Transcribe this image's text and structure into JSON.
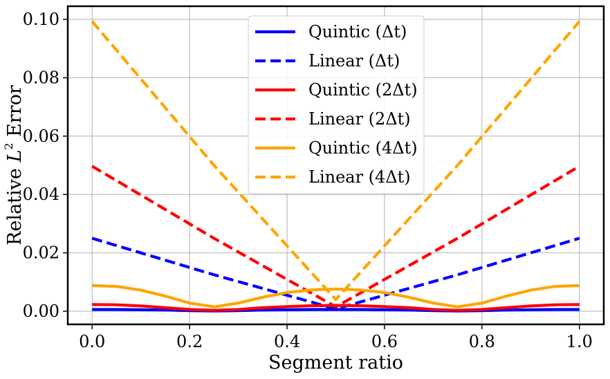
{
  "chart_data": {
    "type": "line",
    "title": "",
    "xlabel": "Segment ratio",
    "ylabel_prefix": "Relative ",
    "ylabel_var": "L",
    "ylabel_sup": "2",
    "ylabel_suffix": " Error",
    "xlim": [
      -0.05,
      1.05
    ],
    "ylim": [
      -0.0045,
      0.1045
    ],
    "xticks": [
      0.0,
      0.2,
      0.4,
      0.6,
      0.8,
      1.0
    ],
    "xtick_labels": [
      "0.0",
      "0.2",
      "0.4",
      "0.6",
      "0.8",
      "1.0"
    ],
    "yticks": [
      0.0,
      0.02,
      0.04,
      0.06,
      0.08,
      0.1
    ],
    "ytick_labels": [
      "0.00",
      "0.02",
      "0.04",
      "0.06",
      "0.08",
      "0.10"
    ],
    "grid": true,
    "legend_position": "top-center",
    "series": [
      {
        "name": "Quintic (Δt)",
        "color": "#0000ff",
        "style": "solid",
        "x": [
          0.0,
          0.05,
          0.1,
          0.15,
          0.2,
          0.25,
          0.3,
          0.35,
          0.4,
          0.45,
          0.5,
          0.55,
          0.6,
          0.65,
          0.7,
          0.75,
          0.8,
          0.85,
          0.9,
          0.95,
          1.0
        ],
        "y": [
          0.0006,
          0.0006,
          0.0005,
          0.0004,
          0.0002,
          0.0001,
          0.0002,
          0.0004,
          0.0005,
          0.0006,
          0.0006,
          0.0006,
          0.0005,
          0.0004,
          0.0002,
          0.0001,
          0.0002,
          0.0004,
          0.0005,
          0.0006,
          0.0006
        ]
      },
      {
        "name": "Linear (Δt)",
        "color": "#0000ff",
        "style": "dashed",
        "x": [
          0.0,
          0.25,
          0.5,
          0.75,
          1.0
        ],
        "y": [
          0.025,
          0.0125,
          0.0008,
          0.0125,
          0.025
        ]
      },
      {
        "name": "Quintic (2Δt)",
        "color": "#ff0000",
        "style": "solid",
        "x": [
          0.0,
          0.05,
          0.1,
          0.15,
          0.2,
          0.25,
          0.3,
          0.35,
          0.4,
          0.45,
          0.5,
          0.55,
          0.6,
          0.65,
          0.7,
          0.75,
          0.8,
          0.85,
          0.9,
          0.95,
          1.0
        ],
        "y": [
          0.0023,
          0.0022,
          0.0018,
          0.0012,
          0.0006,
          0.0003,
          0.0006,
          0.0012,
          0.0016,
          0.0019,
          0.002,
          0.0019,
          0.0016,
          0.0012,
          0.0006,
          0.0003,
          0.0006,
          0.0012,
          0.0018,
          0.0022,
          0.0023
        ]
      },
      {
        "name": "Linear (2Δt)",
        "color": "#ff0000",
        "style": "dashed",
        "x": [
          0.0,
          0.25,
          0.5,
          0.75,
          1.0
        ],
        "y": [
          0.0497,
          0.025,
          0.0015,
          0.025,
          0.0497
        ]
      },
      {
        "name": "Quintic (4Δt)",
        "color": "#ffa500",
        "style": "solid",
        "x": [
          0.0,
          0.05,
          0.1,
          0.15,
          0.2,
          0.25,
          0.3,
          0.35,
          0.4,
          0.45,
          0.5,
          0.55,
          0.6,
          0.65,
          0.7,
          0.75,
          0.8,
          0.85,
          0.9,
          0.95,
          1.0
        ],
        "y": [
          0.0088,
          0.0085,
          0.0072,
          0.0052,
          0.0028,
          0.0015,
          0.0028,
          0.0048,
          0.0064,
          0.0073,
          0.0076,
          0.0073,
          0.0064,
          0.0048,
          0.0028,
          0.0015,
          0.0028,
          0.0052,
          0.0072,
          0.0085,
          0.0088
        ]
      },
      {
        "name": "Linear (4Δt)",
        "color": "#ffa500",
        "style": "dashed",
        "x": [
          0.0,
          0.25,
          0.5,
          0.75,
          1.0
        ],
        "y": [
          0.0993,
          0.05,
          0.004,
          0.05,
          0.0993
        ]
      }
    ]
  }
}
